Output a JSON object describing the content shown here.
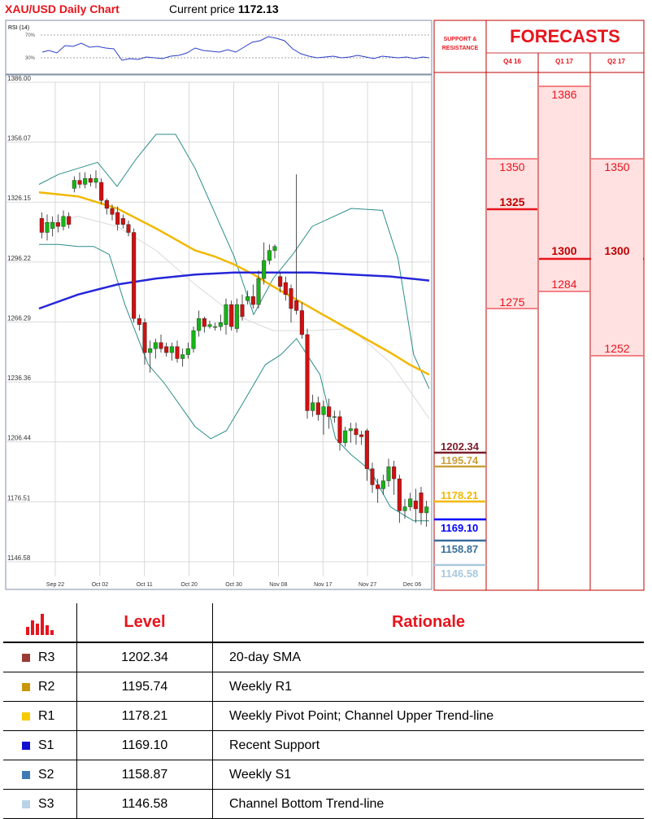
{
  "header": {
    "title": "XAU/USD Daily Chart",
    "price_label": "Current price",
    "price_value": "1172.13"
  },
  "rsi": {
    "label": "RSI (14)",
    "level_high": "70%",
    "level_low": "30%"
  },
  "chart_data": {
    "type": "candlestick",
    "title": "XAU/USD Daily Chart",
    "y_ticks": [
      "1386.00",
      "1356.07",
      "1326.15",
      "1296.22",
      "1266.29",
      "1236.36",
      "1206.44",
      "1176.51",
      "1146.58"
    ],
    "ylim": [
      1146.58,
      1386.0
    ],
    "x_ticks": [
      "Sep 22",
      "Oct 02",
      "Oct 11",
      "Oct 20",
      "Oct 30",
      "Nov 08",
      "Nov 17",
      "Nov 27",
      "Dec 06"
    ],
    "candles": [
      {
        "o": 1318,
        "c": 1311,
        "h": 1321,
        "l": 1308
      },
      {
        "o": 1311,
        "c": 1316,
        "h": 1320,
        "l": 1307
      },
      {
        "o": 1313,
        "c": 1316,
        "h": 1319,
        "l": 1309
      },
      {
        "o": 1316,
        "c": 1314,
        "h": 1320,
        "l": 1311
      },
      {
        "o": 1314,
        "c": 1319,
        "h": 1322,
        "l": 1312
      },
      {
        "o": 1319,
        "c": 1315,
        "h": 1321,
        "l": 1313
      },
      {
        "o": 1333,
        "c": 1337,
        "h": 1339,
        "l": 1331
      },
      {
        "o": 1337,
        "c": 1335,
        "h": 1341,
        "l": 1333
      },
      {
        "o": 1335,
        "c": 1338,
        "h": 1341,
        "l": 1333
      },
      {
        "o": 1338,
        "c": 1336,
        "h": 1340,
        "l": 1334
      },
      {
        "o": 1336,
        "c": 1338,
        "h": 1342,
        "l": 1333
      },
      {
        "o": 1336,
        "c": 1327,
        "h": 1338,
        "l": 1325
      },
      {
        "o": 1327,
        "c": 1323,
        "h": 1328,
        "l": 1320
      },
      {
        "o": 1323,
        "c": 1320,
        "h": 1325,
        "l": 1317
      },
      {
        "o": 1321,
        "c": 1315,
        "h": 1324,
        "l": 1312
      },
      {
        "o": 1318,
        "c": 1315,
        "h": 1320,
        "l": 1313
      },
      {
        "o": 1315,
        "c": 1311,
        "h": 1317,
        "l": 1309
      },
      {
        "o": 1311,
        "c": 1268,
        "h": 1313,
        "l": 1266
      },
      {
        "o": 1268,
        "c": 1265,
        "h": 1270,
        "l": 1262
      },
      {
        "o": 1266,
        "c": 1251,
        "h": 1268,
        "l": 1245
      },
      {
        "o": 1251,
        "c": 1253,
        "h": 1257,
        "l": 1241
      },
      {
        "o": 1253,
        "c": 1256,
        "h": 1258,
        "l": 1248
      },
      {
        "o": 1256,
        "c": 1253,
        "h": 1260,
        "l": 1251
      },
      {
        "o": 1254,
        "c": 1251,
        "h": 1256,
        "l": 1249
      },
      {
        "o": 1251,
        "c": 1254,
        "h": 1256,
        "l": 1247
      },
      {
        "o": 1254,
        "c": 1248,
        "h": 1257,
        "l": 1246
      },
      {
        "o": 1248,
        "c": 1250,
        "h": 1253,
        "l": 1244
      },
      {
        "o": 1250,
        "c": 1253,
        "h": 1256,
        "l": 1248
      },
      {
        "o": 1253,
        "c": 1262,
        "h": 1264,
        "l": 1251
      },
      {
        "o": 1262,
        "c": 1268,
        "h": 1272,
        "l": 1259
      },
      {
        "o": 1268,
        "c": 1264,
        "h": 1269,
        "l": 1261
      },
      {
        "o": 1264,
        "c": 1265,
        "h": 1267,
        "l": 1263
      },
      {
        "o": 1264,
        "c": 1264,
        "h": 1266,
        "l": 1262
      },
      {
        "o": 1264,
        "c": 1266,
        "h": 1270,
        "l": 1262
      },
      {
        "o": 1265,
        "c": 1275,
        "h": 1278,
        "l": 1260
      },
      {
        "o": 1275,
        "c": 1264,
        "h": 1277,
        "l": 1262
      },
      {
        "o": 1263,
        "c": 1275,
        "h": 1278,
        "l": 1261
      },
      {
        "o": 1275,
        "c": 1269,
        "h": 1280,
        "l": 1267
      },
      {
        "o": 1277,
        "c": 1279,
        "h": 1282,
        "l": 1275
      },
      {
        "o": 1279,
        "c": 1275,
        "h": 1285,
        "l": 1273
      },
      {
        "o": 1275,
        "c": 1288,
        "h": 1292,
        "l": 1273
      },
      {
        "o": 1288,
        "c": 1297,
        "h": 1306,
        "l": 1285
      },
      {
        "o": 1297,
        "c": 1302,
        "h": 1305,
        "l": 1295
      },
      {
        "o": 1302,
        "c": 1304,
        "h": 1305,
        "l": 1298
      },
      {
        "o": 1289,
        "c": 1284,
        "h": 1291,
        "l": 1281
      },
      {
        "o": 1286,
        "c": 1280,
        "h": 1289,
        "l": 1277
      },
      {
        "o": 1283,
        "c": 1273,
        "h": 1285,
        "l": 1266
      },
      {
        "o": 1277,
        "c": 1272,
        "h": 1340,
        "l": 1270
      },
      {
        "o": 1272,
        "c": 1260,
        "h": 1276,
        "l": 1258
      },
      {
        "o": 1260,
        "c": 1222,
        "h": 1263,
        "l": 1218
      },
      {
        "o": 1222,
        "c": 1226,
        "h": 1230,
        "l": 1219
      },
      {
        "o": 1226,
        "c": 1220,
        "h": 1229,
        "l": 1217
      },
      {
        "o": 1220,
        "c": 1224,
        "h": 1227,
        "l": 1210
      },
      {
        "o": 1224,
        "c": 1219,
        "h": 1228,
        "l": 1213
      },
      {
        "o": 1219,
        "c": 1219,
        "h": 1222,
        "l": 1216
      },
      {
        "o": 1219,
        "c": 1206,
        "h": 1222,
        "l": 1202
      },
      {
        "o": 1206,
        "c": 1212,
        "h": 1214,
        "l": 1204
      },
      {
        "o": 1212,
        "c": 1213,
        "h": 1216,
        "l": 1206
      },
      {
        "o": 1213,
        "c": 1210,
        "h": 1216,
        "l": 1205
      },
      {
        "o": 1210,
        "c": 1209,
        "h": 1212,
        "l": 1205
      },
      {
        "o": 1212,
        "c": 1193,
        "h": 1213,
        "l": 1187
      },
      {
        "o": 1193,
        "c": 1185,
        "h": 1196,
        "l": 1181
      },
      {
        "o": 1185,
        "c": 1183,
        "h": 1188,
        "l": 1176
      },
      {
        "o": 1183,
        "c": 1187,
        "h": 1190,
        "l": 1180
      },
      {
        "o": 1187,
        "c": 1194,
        "h": 1198,
        "l": 1184
      },
      {
        "o": 1194,
        "c": 1188,
        "h": 1197,
        "l": 1180
      },
      {
        "o": 1188,
        "c": 1172,
        "h": 1190,
        "l": 1166
      },
      {
        "o": 1172,
        "c": 1174,
        "h": 1178,
        "l": 1168
      },
      {
        "o": 1174,
        "c": 1178,
        "h": 1181,
        "l": 1172
      },
      {
        "o": 1177,
        "c": 1173,
        "h": 1183,
        "l": 1166
      },
      {
        "o": 1181,
        "c": 1171,
        "h": 1184,
        "l": 1165
      },
      {
        "o": 1171,
        "c": 1174,
        "h": 1177,
        "l": 1164
      }
    ],
    "sma_yellow": [
      [
        0,
        1331
      ],
      [
        10,
        1329
      ],
      [
        20,
        1323
      ],
      [
        30,
        1313
      ],
      [
        40,
        1302
      ],
      [
        45,
        1299
      ],
      [
        50,
        1295
      ],
      [
        55,
        1290
      ],
      [
        60,
        1284
      ],
      [
        70,
        1273
      ],
      [
        80,
        1262
      ],
      [
        90,
        1251
      ],
      [
        95,
        1245
      ],
      [
        100,
        1240
      ]
    ],
    "sma_blue": [
      [
        0,
        1273
      ],
      [
        10,
        1280
      ],
      [
        20,
        1285
      ],
      [
        30,
        1288
      ],
      [
        40,
        1290
      ],
      [
        50,
        1291
      ],
      [
        60,
        1291
      ],
      [
        70,
        1291
      ],
      [
        80,
        1290
      ],
      [
        90,
        1289
      ],
      [
        100,
        1287
      ]
    ],
    "sma_gray": [
      [
        0,
        1315
      ],
      [
        10,
        1319
      ],
      [
        20,
        1314
      ],
      [
        30,
        1302
      ],
      [
        40,
        1285
      ],
      [
        50,
        1270
      ],
      [
        60,
        1262
      ],
      [
        70,
        1262
      ],
      [
        80,
        1263
      ],
      [
        90,
        1246
      ],
      [
        100,
        1218
      ]
    ],
    "bb_upper": [
      [
        0,
        1335
      ],
      [
        5,
        1340
      ],
      [
        15,
        1346
      ],
      [
        20,
        1334
      ],
      [
        25,
        1348
      ],
      [
        30,
        1360
      ],
      [
        35,
        1360
      ],
      [
        40,
        1343
      ],
      [
        50,
        1299
      ],
      [
        55,
        1270
      ],
      [
        60,
        1288
      ],
      [
        65,
        1300
      ],
      [
        70,
        1314
      ],
      [
        80,
        1323
      ],
      [
        88,
        1322
      ],
      [
        92,
        1298
      ],
      [
        96,
        1250
      ],
      [
        100,
        1233
      ]
    ],
    "bb_lower": [
      [
        0,
        1305
      ],
      [
        5,
        1305
      ],
      [
        10,
        1304
      ],
      [
        14,
        1304
      ],
      [
        18,
        1300
      ],
      [
        22,
        1275
      ],
      [
        28,
        1245
      ],
      [
        32,
        1236
      ],
      [
        40,
        1214
      ],
      [
        44,
        1208
      ],
      [
        48,
        1212
      ],
      [
        52,
        1225
      ],
      [
        58,
        1245
      ],
      [
        62,
        1250
      ],
      [
        66,
        1258
      ],
      [
        72,
        1240
      ],
      [
        76,
        1208
      ],
      [
        80,
        1200
      ],
      [
        85,
        1192
      ],
      [
        90,
        1174
      ],
      [
        96,
        1167
      ],
      [
        100,
        1167
      ]
    ]
  },
  "forecast": {
    "title": "FORECASTS",
    "support_label_1": "SUPPORT &",
    "support_label_2": "RESISTANCE",
    "columns": [
      {
        "head": "Q4 16",
        "high": "1350",
        "mid": "1325",
        "low": "1275"
      },
      {
        "head": "Q1 17",
        "high": "1386",
        "mid": "1300",
        "low": "1284"
      },
      {
        "head": "Q2 17",
        "high": "1350",
        "mid": "1300",
        "low": "1252"
      }
    ]
  },
  "sr_levels": [
    {
      "value": "1202.34",
      "color": "#7b1c2a"
    },
    {
      "value": "1195.74",
      "color": "#c9a03c"
    },
    {
      "value": "1178.21",
      "color": "#f2b800"
    },
    {
      "value": "1169.10",
      "color": "#0000ff"
    },
    {
      "value": "1158.87",
      "color": "#3a6f9a"
    },
    {
      "value": "1146.58",
      "color": "#a9c9e0"
    }
  ],
  "table": {
    "head_level": "Level",
    "head_rationale": "Rationale",
    "rows": [
      {
        "name": "R3",
        "level": "1202.34",
        "rationale": "20-day SMA",
        "color": "#9b3a35"
      },
      {
        "name": "R2",
        "level": "1195.74",
        "rationale": "Weekly R1",
        "color": "#c9960a"
      },
      {
        "name": "R1",
        "level": "1178.21",
        "rationale": "Weekly Pivot Point; Channel Upper Trend-line",
        "color": "#f7c900"
      },
      {
        "name": "S1",
        "level": "1169.10",
        "rationale": "Recent Support",
        "color": "#1010d0"
      },
      {
        "name": "S2",
        "level": "1158.87",
        "rationale": "Weekly S1",
        "color": "#3f7ab5"
      },
      {
        "name": "S3",
        "level": "1146.58",
        "rationale": "Channel Bottom Trend-line",
        "color": "#b9d3e8"
      }
    ]
  }
}
